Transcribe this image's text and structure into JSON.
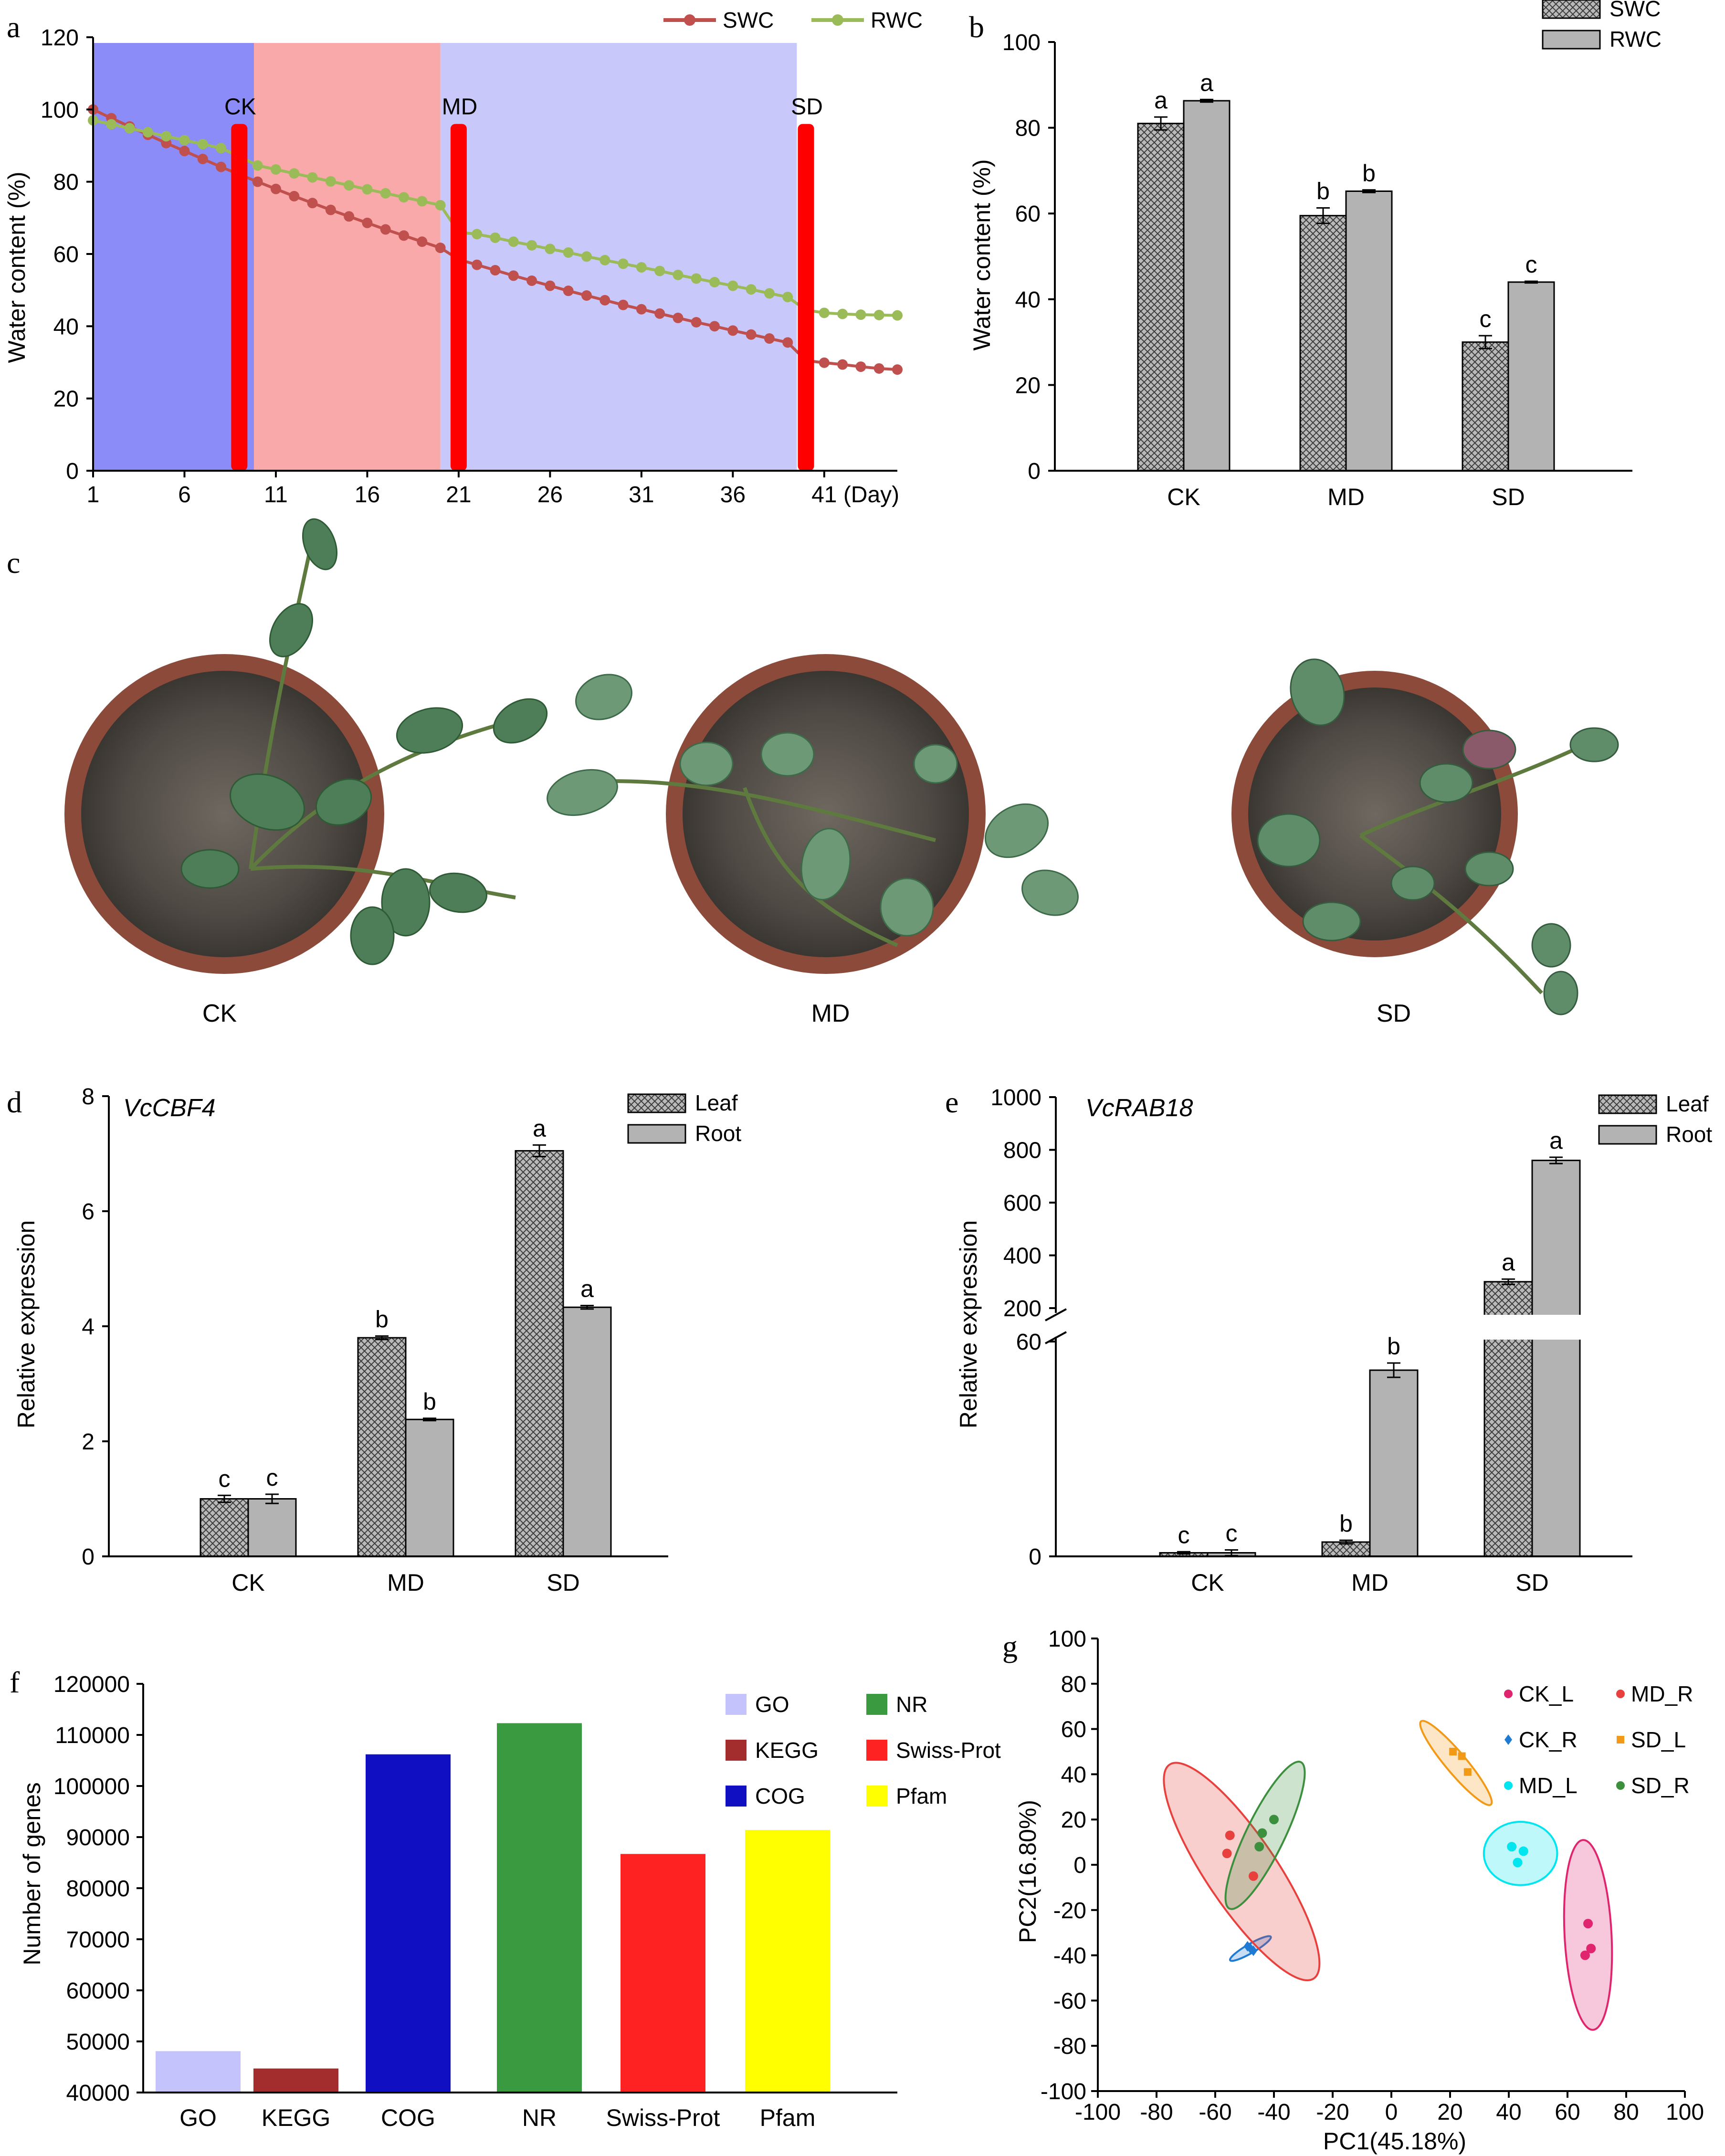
{
  "panels": {
    "a": "a",
    "b": "b",
    "c": "c",
    "d": "d",
    "e": "e",
    "f": "f",
    "g": "g"
  },
  "colors": {
    "swc": "#c0504d",
    "rwc": "#9bbb59",
    "ck_zone": "#8c8cf8",
    "md_zone": "#f9a9a9",
    "sd_zone": "#c8c8fa",
    "marker": "#ff0000",
    "hatch_bar": "#7f7f7f",
    "plain_bar": "#b3b3b3"
  },
  "photo_labels": [
    "CK",
    "MD",
    "SD"
  ],
  "chart_data": [
    {
      "id": "a",
      "type": "line",
      "xlabel": "",
      "ylabel": "Water content (%)",
      "xlim": [
        1,
        45
      ],
      "ylim": [
        0,
        120
      ],
      "xticks": [
        1,
        6,
        11,
        16,
        21,
        26,
        31,
        36,
        41
      ],
      "xtick_labels": [
        "1",
        "6",
        "11",
        "16",
        "21",
        "26",
        "31",
        "36",
        "41"
      ],
      "x_unit": "(Day)",
      "yticks": [
        0,
        20,
        40,
        60,
        80,
        100,
        120
      ],
      "legend": [
        "SWC",
        "RWC"
      ],
      "stage_regions": [
        {
          "from": 1,
          "to": 9.8
        },
        {
          "from": 9.8,
          "to": 20
        },
        {
          "from": 20,
          "to": 39.5
        }
      ],
      "stage_markers": [
        {
          "label": "CK",
          "day": 9
        },
        {
          "label": "MD",
          "day": 21
        },
        {
          "label": "SD",
          "day": 40
        }
      ],
      "marker_top": 96,
      "x": [
        1,
        2,
        3,
        4,
        5,
        6,
        7,
        8,
        9,
        10,
        11,
        12,
        13,
        14,
        15,
        16,
        17,
        18,
        19,
        20,
        21,
        22,
        23,
        24,
        25,
        26,
        27,
        28,
        29,
        30,
        31,
        32,
        33,
        34,
        35,
        36,
        37,
        38,
        39,
        40,
        41,
        42,
        43,
        44,
        45
      ],
      "series": [
        {
          "name": "SWC",
          "values": [
            100,
            97.6,
            95.3,
            93.0,
            90.7,
            88.5,
            86.3,
            84.1,
            82.0,
            80.0,
            78.0,
            76.0,
            74.1,
            72.2,
            70.4,
            68.6,
            66.8,
            65.1,
            63.4,
            61.7,
            58.5,
            57.0,
            55.5,
            54.0,
            52.6,
            51.2,
            49.8,
            48.5,
            47.2,
            45.9,
            44.7,
            43.5,
            42.3,
            41.1,
            40.0,
            38.8,
            37.7,
            36.6,
            35.5,
            30.5,
            29.9,
            29.4,
            28.8,
            28.3,
            28.0
          ]
        },
        {
          "name": "RWC",
          "values": [
            97.0,
            95.9,
            94.8,
            93.7,
            92.6,
            91.5,
            90.4,
            89.3,
            87.0,
            84.5,
            83.4,
            82.3,
            81.2,
            80.1,
            79.0,
            77.9,
            76.8,
            75.7,
            74.6,
            73.5,
            66.0,
            65.5,
            64.5,
            63.4,
            62.4,
            61.4,
            60.4,
            59.3,
            58.3,
            57.3,
            56.3,
            55.3,
            54.2,
            53.2,
            52.2,
            51.2,
            50.2,
            49.1,
            48.1,
            44.5,
            43.7,
            43.4,
            43.2,
            43.1,
            43.0
          ]
        }
      ]
    },
    {
      "id": "b",
      "type": "bar",
      "categories": [
        "CK",
        "MD",
        "SD"
      ],
      "ylabel": "Water content (%)",
      "ylim": [
        0,
        100
      ],
      "yticks": [
        0,
        20,
        40,
        60,
        80,
        100
      ],
      "series": [
        {
          "name": "SWC",
          "values": [
            81,
            59.5,
            30
          ],
          "errors": [
            1.5,
            1.8,
            1.5
          ],
          "letters": [
            "a",
            "b",
            "c"
          ]
        },
        {
          "name": "RWC",
          "values": [
            86.3,
            65.2,
            44
          ],
          "errors": [
            0.3,
            0.3,
            0.2
          ],
          "letters": [
            "a",
            "b",
            "c"
          ]
        }
      ]
    },
    {
      "id": "d",
      "type": "bar",
      "gene": "VcCBF4",
      "categories": [
        "CK",
        "MD",
        "SD"
      ],
      "ylabel": "Relative expression",
      "ylim": [
        0,
        8
      ],
      "yticks": [
        0,
        2,
        4,
        6,
        8
      ],
      "series": [
        {
          "name": "Leaf",
          "values": [
            1.0,
            3.8,
            7.05
          ],
          "errors": [
            0.06,
            0.03,
            0.1
          ],
          "letters": [
            "c",
            "b",
            "a"
          ]
        },
        {
          "name": "Root",
          "values": [
            1.0,
            2.38,
            4.33
          ],
          "errors": [
            0.08,
            0.02,
            0.03
          ],
          "letters": [
            "c",
            "b",
            "a"
          ]
        }
      ]
    },
    {
      "id": "e",
      "type": "bar",
      "gene": "VcRAB18",
      "categories": [
        "CK",
        "MD",
        "SD"
      ],
      "ylabel": "Relative expression",
      "broken_axis": {
        "lower": [
          0,
          60
        ],
        "upper": [
          200,
          1000
        ]
      },
      "ytick_labels": [
        "0",
        "60",
        "200",
        "400",
        "600",
        "800",
        "1000"
      ],
      "series": [
        {
          "name": "Leaf",
          "values": [
            1.0,
            4.0,
            300
          ],
          "errors": [
            0.3,
            0.5,
            10
          ],
          "letters": [
            "c",
            "b",
            "a"
          ]
        },
        {
          "name": "Root",
          "values": [
            1.0,
            52,
            760
          ],
          "errors": [
            0.8,
            2.0,
            12
          ],
          "letters": [
            "c",
            "b",
            "a"
          ]
        }
      ]
    },
    {
      "id": "f",
      "type": "bar",
      "categories": [
        "GO",
        "KEGG",
        "COG",
        "NR",
        "Swiss-Prot",
        "Pfam"
      ],
      "ylabel": "Number of genes",
      "ylim": [
        40000,
        120000
      ],
      "yticks": [
        40000,
        50000,
        60000,
        70000,
        80000,
        90000,
        100000,
        110000,
        120000
      ],
      "values": [
        48100,
        44700,
        106200,
        112300,
        86700,
        91400
      ],
      "bar_colors": [
        "#c4c3fb",
        "#a32c2c",
        "#1010c2",
        "#3a9a3f",
        "#ff2222",
        "#ffff00"
      ],
      "legend": [
        "GO",
        "NR",
        "KEGG",
        "Swiss-Prot",
        "COG",
        "Pfam"
      ]
    },
    {
      "id": "g",
      "type": "scatter",
      "xlabel": "PC1(45.18%)",
      "ylabel": "PC2(16.80%)",
      "xlim": [
        -100,
        100
      ],
      "ylim": [
        -100,
        100
      ],
      "xticks": [
        -100,
        -80,
        -60,
        -40,
        -20,
        0,
        20,
        40,
        60,
        80,
        100
      ],
      "yticks": [
        -100,
        -80,
        -60,
        -40,
        -20,
        0,
        20,
        40,
        60,
        80,
        100
      ],
      "legend": [
        "CK_L",
        "MD_R",
        "CK_R",
        "SD_L",
        "MD_L",
        "SD_R"
      ],
      "groups": [
        {
          "name": "CK_L",
          "color": "#e0256e",
          "marker": "circle",
          "points": [
            [
              67,
              -26
            ],
            [
              68,
              -37
            ],
            [
              66,
              -40
            ]
          ],
          "ellipse": {
            "cx": 67,
            "cy": -31,
            "rx": 8,
            "ry": 42,
            "angle": -3
          }
        },
        {
          "name": "CK_R",
          "color": "#1f7ad4",
          "marker": "diamond",
          "points": [
            [
              -49,
              -36
            ],
            [
              -47,
              -38
            ],
            [
              -48,
              -37
            ]
          ],
          "ellipse": {
            "cx": -48,
            "cy": -37,
            "rx": 8,
            "ry": 2,
            "angle": -30
          }
        },
        {
          "name": "MD_L",
          "color": "#00e5ee",
          "marker": "circle",
          "points": [
            [
              41,
              8
            ],
            [
              45,
              6
            ],
            [
              43,
              1
            ]
          ],
          "ellipse": {
            "cx": 44,
            "cy": 5,
            "rx": 12.5,
            "ry": 14,
            "angle": 0
          }
        },
        {
          "name": "MD_R",
          "color": "#e8403d",
          "marker": "circle",
          "points": [
            [
              -55,
              13
            ],
            [
              -56,
              5
            ],
            [
              -47,
              -5
            ]
          ],
          "ellipse": {
            "cx": -51,
            "cy": -3,
            "rx": 12,
            "ry": 57,
            "angle": -34
          }
        },
        {
          "name": "SD_L",
          "color": "#f29a16",
          "marker": "square",
          "points": [
            [
              21,
              50
            ],
            [
              24,
              48
            ],
            [
              26,
              41
            ]
          ],
          "ellipse": {
            "cx": 22,
            "cy": 45,
            "rx": 3.5,
            "ry": 24,
            "angle": -40
          }
        },
        {
          "name": "SD_R",
          "color": "#3b8f3d",
          "marker": "circle",
          "points": [
            [
              -44,
              14
            ],
            [
              -40,
              20
            ],
            [
              -45,
              8
            ]
          ],
          "ellipse": {
            "cx": -43,
            "cy": 13,
            "rx": 6.5,
            "ry": 36,
            "angle": 26
          }
        }
      ]
    }
  ]
}
